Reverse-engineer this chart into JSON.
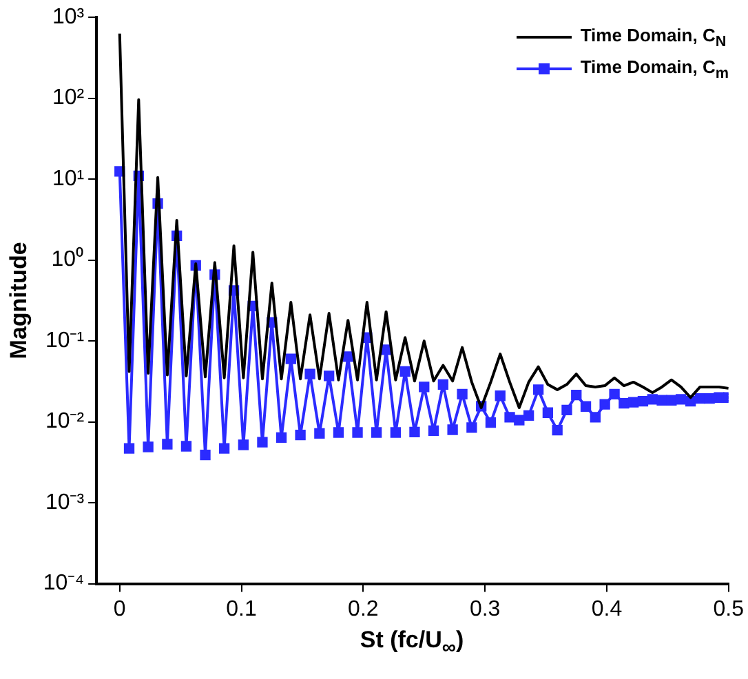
{
  "chart_data": {
    "type": "line",
    "xlabel": "St (fc/U$_{∞}$)",
    "ylabel": "Magnitude",
    "log": "y",
    "grid": false,
    "legend": "top right",
    "line_style": "solid",
    "xlim": [
      -0.019,
      0.5
    ],
    "xticks": [
      0,
      0.1,
      0.2,
      0.3,
      0.4,
      0.5
    ],
    "ylim": [
      0.0001,
      1000
    ],
    "yticks": [
      {
        "value": 0.0001,
        "label": "10⁻⁴"
      },
      {
        "value": 0.001,
        "label": "10⁻³"
      },
      {
        "value": 0.01,
        "label": "10⁻²"
      },
      {
        "value": 0.1,
        "label": "10⁻¹"
      },
      {
        "value": 1,
        "label": "10⁰"
      },
      {
        "value": 10,
        "label": "10¹"
      },
      {
        "value": 100,
        "label": "10²"
      },
      {
        "value": 1000,
        "label": "10³"
      }
    ],
    "x": [
      0,
      0.0078,
      0.0156,
      0.0234,
      0.0313,
      0.0391,
      0.0469,
      0.0547,
      0.0625,
      0.0703,
      0.0781,
      0.0859,
      0.0938,
      0.1016,
      0.1094,
      0.1172,
      0.125,
      0.1328,
      0.1406,
      0.1484,
      0.1563,
      0.1641,
      0.1719,
      0.1797,
      0.1875,
      0.1953,
      0.2031,
      0.2109,
      0.2188,
      0.2266,
      0.2344,
      0.2422,
      0.25,
      0.2578,
      0.2656,
      0.2734,
      0.2813,
      0.2891,
      0.2969,
      0.3047,
      0.3125,
      0.3203,
      0.3281,
      0.3359,
      0.3438,
      0.3516,
      0.3594,
      0.3672,
      0.375,
      0.3828,
      0.3906,
      0.3984,
      0.4063,
      0.4141,
      0.4219,
      0.4297,
      0.4375,
      0.4453,
      0.4531,
      0.4609,
      0.4688,
      0.4766,
      0.4844,
      0.4922,
      0.5
    ],
    "series": [
      {
        "name": "Time Domain, C$_{N}$",
        "color": "#000000",
        "marker": "none",
        "values": [
          630,
          0.042,
          96,
          0.04,
          10.5,
          0.038,
          3.1,
          0.037,
          0.9,
          0.036,
          0.93,
          0.035,
          1.5,
          0.035,
          1.25,
          0.034,
          0.52,
          0.034,
          0.3,
          0.034,
          0.21,
          0.034,
          0.22,
          0.033,
          0.18,
          0.033,
          0.3,
          0.033,
          0.23,
          0.033,
          0.11,
          0.032,
          0.1,
          0.032,
          0.05,
          0.032,
          0.083,
          0.031,
          0.015,
          0.031,
          0.069,
          0.031,
          0.015,
          0.031,
          0.048,
          0.029,
          0.025,
          0.029,
          0.039,
          0.028,
          0.027,
          0.028,
          0.035,
          0.028,
          0.031,
          0.027,
          0.023,
          0.027,
          0.033,
          0.027,
          0.02,
          0.027,
          0.027,
          0.027,
          0.026
        ]
      },
      {
        "name": "Time Domain, C$_{m}$",
        "color": "#2b2bff",
        "marker": "square",
        "values": [
          12.5,
          0.0047,
          11,
          0.0049,
          5,
          0.0053,
          2,
          0.005,
          0.86,
          0.0039,
          0.66,
          0.0047,
          0.42,
          0.0052,
          0.27,
          0.0056,
          0.17,
          0.0064,
          0.06,
          0.0069,
          0.039,
          0.0072,
          0.037,
          0.0074,
          0.064,
          0.0074,
          0.11,
          0.0074,
          0.078,
          0.0074,
          0.042,
          0.0075,
          0.027,
          0.0078,
          0.029,
          0.008,
          0.022,
          0.0085,
          0.0156,
          0.0098,
          0.021,
          0.0114,
          0.0105,
          0.012,
          0.025,
          0.013,
          0.0079,
          0.014,
          0.0215,
          0.0155,
          0.0114,
          0.0165,
          0.022,
          0.017,
          0.0175,
          0.018,
          0.019,
          0.0185,
          0.0185,
          0.019,
          0.018,
          0.0195,
          0.0195,
          0.02,
          0.02
        ]
      }
    ]
  }
}
